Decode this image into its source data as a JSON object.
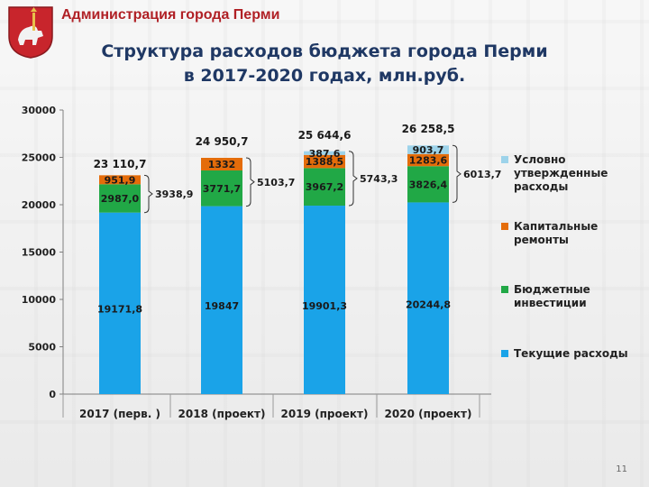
{
  "header": {
    "org_title": "Администрация города Перми"
  },
  "slide": {
    "title_line1": "Структура расходов бюджета города Перми",
    "title_line2": "в 2017-2020 годах, млн.руб.",
    "page_number": "11"
  },
  "colors": {
    "current": "#1aa3e8",
    "investments": "#21a846",
    "repairs": "#e46c0a",
    "conditional": "#9dd3ea",
    "brand": "#b02025",
    "title": "#1f3864"
  },
  "chart_data": {
    "type": "bar",
    "stacked": true,
    "categories": [
      "2017 (перв. )",
      "2018 (проект)",
      "2019 (проект)",
      "2020 (проект)"
    ],
    "series": [
      {
        "name": "Текущие расходы",
        "values": [
          19171.8,
          19847,
          19901.3,
          20244.8
        ],
        "labels": [
          "19171,8",
          "19847",
          "19901,3",
          "20244,8"
        ]
      },
      {
        "name": "Бюджетные инвестиции",
        "values": [
          2987.0,
          3771.7,
          3967.2,
          3826.4
        ],
        "labels": [
          "2987,0",
          "3771,7",
          "3967,2",
          "3826,4"
        ]
      },
      {
        "name": "Капитальные ремонты",
        "values": [
          951.9,
          1332,
          1388.5,
          1283.6
        ],
        "labels": [
          "951,9",
          "1332",
          "1388,5",
          "1283,6"
        ]
      },
      {
        "name": "Условно утвержденные расходы",
        "values": [
          0,
          0,
          387.6,
          903.7
        ],
        "labels": [
          "",
          "",
          "387,6",
          "903,7"
        ]
      }
    ],
    "totals": [
      "23 110,7",
      "24 950,7",
      "25 644,6",
      "26 258,5"
    ],
    "bracket_sums": [
      "3938,9",
      "5103,7",
      "5743,3",
      "6013,7"
    ],
    "ylim": [
      0,
      30000
    ],
    "yticks": [
      0,
      5000,
      10000,
      15000,
      20000,
      25000,
      30000
    ],
    "grid": false,
    "legend_position": "right"
  }
}
